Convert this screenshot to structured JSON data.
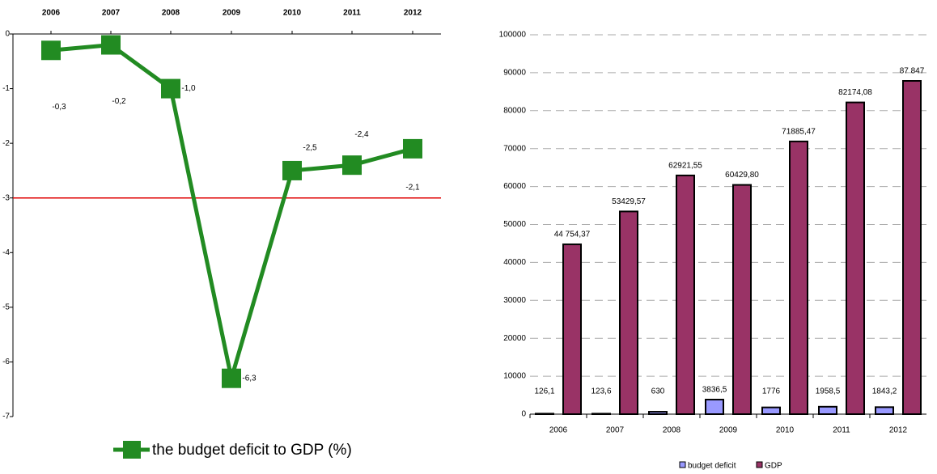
{
  "chart_data": [
    {
      "type": "line",
      "categories": [
        "2006",
        "2007",
        "2008",
        "2009",
        "2010",
        "2011",
        "2012"
      ],
      "series": [
        {
          "name": "the budget deficit to GDP (%)",
          "color": "#228b22",
          "values": [
            -0.3,
            -0.2,
            -1.0,
            -6.3,
            -2.5,
            -2.4,
            -2.1
          ],
          "value_labels": [
            "-0,3",
            "-0,2",
            "-1,0",
            "-6,3",
            "-2,5",
            "-2,4",
            "-2,1"
          ]
        }
      ],
      "ylim": [
        -7,
        0
      ],
      "yticks": [
        0,
        -1,
        -2,
        -3,
        -4,
        -5,
        -6,
        -7
      ],
      "reference_line": {
        "value": -3,
        "color": "#e00000"
      }
    },
    {
      "type": "bar",
      "categories": [
        "2006",
        "2007",
        "2008",
        "2009",
        "2010",
        "2011",
        "2012"
      ],
      "series": [
        {
          "name": "budget deficit",
          "color": "#9999ff",
          "values": [
            126.1,
            123.6,
            630,
            3836.5,
            1776,
            1958.5,
            1843.2
          ],
          "value_labels": [
            "126,1",
            "123,6",
            "630",
            "3836,5",
            "1776",
            "1958,5",
            "1843,2"
          ]
        },
        {
          "name": "GDP",
          "color": "#993366",
          "values": [
            44754.37,
            53429.57,
            62921.55,
            60429.8,
            71885.47,
            82174.08,
            87847
          ],
          "value_labels": [
            "44 754,37",
            "53429,57",
            "62921,55",
            "60429,80",
            "71885,47",
            "82174,08",
            "87 847"
          ]
        }
      ],
      "ylim": [
        0,
        100000
      ],
      "yticks": [
        0,
        10000,
        20000,
        30000,
        40000,
        50000,
        60000,
        70000,
        80000,
        90000,
        100000
      ],
      "grid": true
    }
  ]
}
